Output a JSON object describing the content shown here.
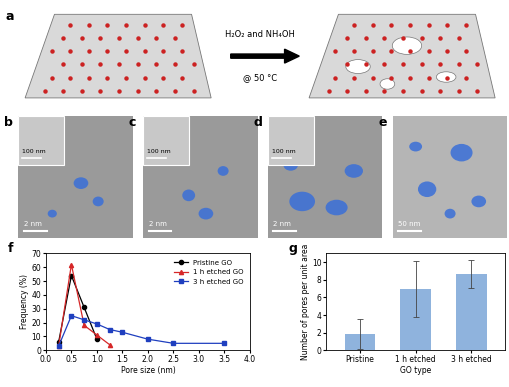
{
  "panels": {
    "a": {
      "label": "a",
      "reagents": "H₂O₂ and NH₄OH",
      "condition": "@ 50 °C"
    },
    "b": {
      "label": "b",
      "scale_bar": "2 nm",
      "inset_scale_bar": "100 nm"
    },
    "c": {
      "label": "c",
      "scale_bar": "2 nm",
      "inset_scale_bar": "100 nm"
    },
    "d": {
      "label": "d",
      "scale_bar": "2 nm",
      "inset_scale_bar": "100 nm"
    },
    "e": {
      "label": "e",
      "scale_bar": "50 nm"
    }
  },
  "chart_data": [
    {
      "type": "line",
      "panel_label": "f",
      "x_label": "Pore size (nm)",
      "y_label": "Frequency (%)",
      "xlim": [
        0,
        4
      ],
      "ylim": [
        0,
        70
      ],
      "xticks": [
        {
          "value": 0,
          "label": "0.0"
        },
        0.5,
        {
          "value": 1,
          "label": "1.0"
        },
        1.5,
        {
          "value": 2,
          "label": "2.0"
        },
        2.5,
        {
          "value": 3,
          "label": "3.0"
        },
        3.5,
        {
          "value": 4,
          "label": "4.0"
        }
      ],
      "yticks": [
        0,
        10,
        20,
        30,
        40,
        50,
        60,
        70
      ],
      "legend": "upper right",
      "series": [
        {
          "name": "Pristine GO",
          "color": "#000000",
          "marker": "o",
          "x": [
            0.25,
            0.5,
            0.75,
            1.0
          ],
          "values": [
            6,
            54,
            31,
            8
          ]
        },
        {
          "name": "1 h etched GO",
          "color": "#d62728",
          "marker": "^",
          "x": [
            0.25,
            0.5,
            0.75,
            1.0,
            1.25
          ],
          "values": [
            3,
            62,
            18,
            11,
            4
          ]
        },
        {
          "name": "3 h etched GO",
          "color": "#1f3fbf",
          "marker": "s",
          "x": [
            0.25,
            0.5,
            0.75,
            1.0,
            1.25,
            1.5,
            2.0,
            2.5,
            3.5
          ],
          "values": [
            3,
            25,
            22,
            19,
            15,
            13,
            8,
            5,
            5
          ]
        }
      ]
    },
    {
      "type": "bar",
      "panel_label": "g",
      "x_label": "GO type",
      "y_label": "Number of pores per unit area",
      "categories": [
        "Pristine",
        "1 h etched",
        "3 h etched"
      ],
      "values": [
        1.8,
        7.0,
        8.7
      ],
      "errors": [
        1.7,
        3.2,
        1.6
      ],
      "color": "#8fb3dd",
      "ylim": [
        0,
        11
      ],
      "yticks": [
        0,
        2,
        4,
        6,
        8,
        10
      ]
    }
  ]
}
